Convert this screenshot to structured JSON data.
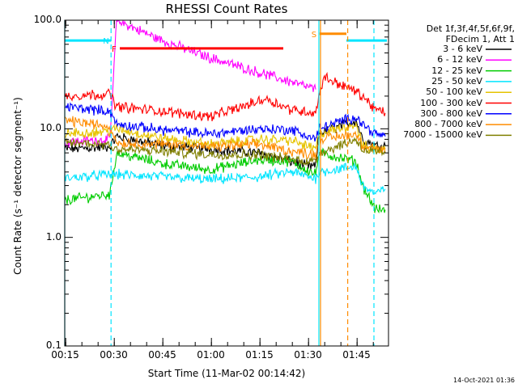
{
  "chart_data": {
    "type": "line",
    "title": "RHESSI Count Rates",
    "xlabel": "Start Time (11-Mar-02 00:14:42)",
    "ylabel": "Count Rate (s⁻¹ detector segment⁻¹)",
    "yscale": "log",
    "ylim": [
      0.1,
      100.0
    ],
    "xlim_minutes": [
      0,
      100
    ],
    "x_tick_labels": [
      "00:15",
      "00:30",
      "00:45",
      "01:00",
      "01:15",
      "01:30",
      "01:45"
    ],
    "x_tick_minutes": [
      0.3,
      15.3,
      30.3,
      45.3,
      60.3,
      75.3,
      90.3
    ],
    "y_tick_labels": [
      "0.1",
      "1.0",
      "10.0",
      "100.0"
    ],
    "y_ticks": [
      0.1,
      1.0,
      10.0,
      100.0
    ],
    "legend_header": [
      "Det 1f,3f,4f,5f,6f,9f,",
      "FDecim 1, Att 1"
    ],
    "legend_position": "right",
    "series": [
      {
        "name": "3 - 6 keV",
        "color": "#000000",
        "x": [
          0,
          14,
          16,
          30,
          45,
          60,
          70,
          75,
          77.5,
          78.5,
          90,
          92,
          96,
          99
        ],
        "y": [
          6.5,
          6.8,
          8.5,
          7.0,
          6.5,
          6.0,
          5.0,
          4.5,
          4.5,
          9.0,
          12.0,
          8.0,
          7.0,
          7.0
        ]
      },
      {
        "name": "6 - 12 keV",
        "color": "#ff00ff",
        "x": [
          0,
          14,
          16,
          30,
          45,
          60,
          70,
          77.5
        ],
        "y": [
          7.5,
          8.0,
          100.0,
          65.0,
          45.0,
          33.0,
          27.0,
          23.0
        ]
      },
      {
        "name": "12 - 25 keV",
        "color": "#00cc00",
        "x": [
          0,
          14,
          16,
          30,
          45,
          60,
          70,
          77.5,
          78.5,
          90,
          92,
          96,
          99
        ],
        "y": [
          2.2,
          2.5,
          6.0,
          4.8,
          4.2,
          5.2,
          5.0,
          3.8,
          6.0,
          5.0,
          3.0,
          1.8,
          1.8
        ]
      },
      {
        "name": "25 - 50 keV",
        "color": "#00e5ff",
        "x": [
          0,
          14,
          16,
          30,
          45,
          60,
          70,
          77.5,
          78.5,
          90,
          92,
          96,
          99
        ],
        "y": [
          3.5,
          3.8,
          3.8,
          3.6,
          3.4,
          3.6,
          4.0,
          3.5,
          4.0,
          4.5,
          3.0,
          2.5,
          2.8
        ]
      },
      {
        "name": "50 - 100 keV",
        "color": "#e6c300",
        "x": [
          0,
          14,
          16,
          30,
          45,
          60,
          70,
          77.5,
          78.5,
          90,
          92,
          96,
          99
        ],
        "y": [
          9.0,
          9.5,
          10.0,
          8.2,
          7.2,
          8.0,
          7.8,
          6.5,
          9.0,
          11.0,
          7.0,
          6.5,
          6.5
        ]
      },
      {
        "name": "100 - 300 keV",
        "color": "#ff0000",
        "x": [
          0,
          14,
          16,
          30,
          45,
          55,
          62,
          70,
          77.5,
          78.5,
          80,
          90,
          92,
          96,
          99
        ],
        "y": [
          20.0,
          21.0,
          16.0,
          14.5,
          13.0,
          16.0,
          19.0,
          15.0,
          14.0,
          20.0,
          30.0,
          22.0,
          20.0,
          15.0,
          14.0
        ]
      },
      {
        "name": "300 - 800 keV",
        "color": "#0000ff",
        "x": [
          0,
          14,
          16,
          30,
          45,
          60,
          70,
          77.5,
          78.5,
          90,
          92,
          96,
          99
        ],
        "y": [
          16.0,
          14.5,
          11.0,
          9.8,
          9.0,
          10.0,
          9.8,
          8.0,
          10.0,
          13.0,
          11.0,
          9.0,
          8.5
        ]
      },
      {
        "name": "800 - 7000 keV",
        "color": "#ff8c00",
        "x": [
          0,
          14,
          16,
          30,
          45,
          60,
          70,
          77.5,
          78.5,
          90,
          92,
          96,
          99
        ],
        "y": [
          12.0,
          10.5,
          7.5,
          7.2,
          6.8,
          7.2,
          6.2,
          5.8,
          8.0,
          9.0,
          7.0,
          6.5,
          6.0
        ]
      },
      {
        "name": "7000 - 15000 keV",
        "color": "#808000",
        "x": [
          0,
          14,
          16,
          30,
          45,
          60,
          70,
          77.5,
          78.5,
          90,
          92,
          96,
          99
        ],
        "y": [
          7.5,
          7.2,
          6.5,
          6.2,
          5.8,
          5.8,
          5.2,
          5.0,
          6.0,
          8.0,
          6.5,
          6.0,
          6.0
        ]
      }
    ],
    "flag_bars": [
      {
        "label": "",
        "color": "#00e5ff",
        "x": [
          0,
          14.3
        ],
        "y": 65.0
      },
      {
        "label": "N",
        "color": "#00e5ff",
        "x": [
          14.3,
          14.3
        ],
        "y": 65.0
      },
      {
        "label": "F",
        "color": "#ff0000",
        "x": [
          17.0,
          67.5
        ],
        "y": 55.0
      },
      {
        "label": "S",
        "color": "#ff8c00",
        "x": [
          78.7,
          87.0
        ],
        "y": 75.0
      },
      {
        "label": "",
        "color": "#00e5ff",
        "x": [
          87.0,
          99.5
        ],
        "y": 65.0
      }
    ],
    "vertical_lines": [
      {
        "x": 0,
        "color": "#00e5ff",
        "style": "solid"
      },
      {
        "x": 14.3,
        "color": "#00e5ff",
        "style": "dashed"
      },
      {
        "x": 78.5,
        "color": "#00e5ff",
        "style": "solid"
      },
      {
        "x": 79.0,
        "color": "#ff8c00",
        "style": "solid"
      },
      {
        "x": 87.4,
        "color": "#ff8c00",
        "style": "dashed"
      },
      {
        "x": 95.5,
        "color": "#00e5ff",
        "style": "dashed"
      }
    ]
  },
  "footer_timestamp": "14-Oct-2021 01:36"
}
